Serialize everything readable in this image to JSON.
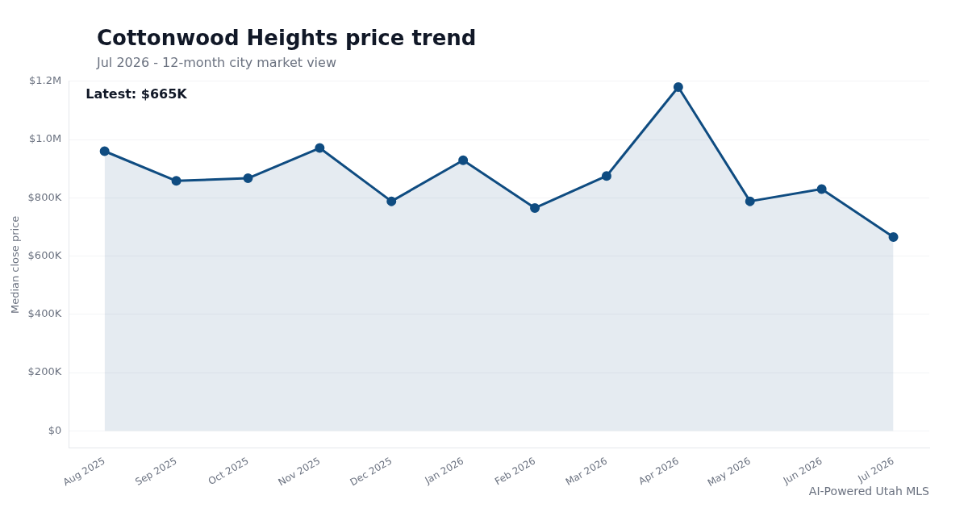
{
  "chart_data": {
    "type": "area",
    "title": "Cottonwood Heights price trend",
    "subtitle": "Jul 2026 - 12-month city market view",
    "ylabel": "Median close price",
    "categories": [
      "Aug 2025",
      "Sep 2025",
      "Oct 2025",
      "Nov 2025",
      "Dec 2025",
      "Jan 2026",
      "Feb 2026",
      "Mar 2026",
      "Apr 2026",
      "May 2026",
      "Jun 2026",
      "Jul 2026"
    ],
    "series": [
      {
        "color": "#0f4c81",
        "values": [
          960000,
          858000,
          867000,
          971000,
          788000,
          929000,
          765000,
          875000,
          1180000,
          788000,
          830000,
          665000
        ]
      }
    ],
    "ylim": [
      -60000,
      1200000
    ],
    "yticks": [
      {
        "value": 0,
        "label": "$0"
      },
      {
        "value": 200000,
        "label": "$200K"
      },
      {
        "value": 400000,
        "label": "$400K"
      },
      {
        "value": 600000,
        "label": "$600K"
      },
      {
        "value": 800000,
        "label": "$800K"
      },
      {
        "value": 1000000,
        "label": "$1.0M"
      },
      {
        "value": 1200000,
        "label": "$1.2M"
      }
    ],
    "grid": "y",
    "marker": "circle",
    "line_style": "solid",
    "legend": false,
    "annotations": [
      "Latest: $665K",
      "AI-Powered Utah MLS"
    ]
  }
}
